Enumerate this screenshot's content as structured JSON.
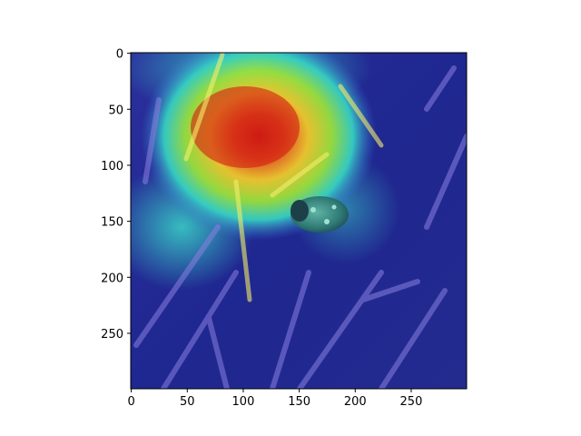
{
  "figure": {
    "image_description_icon": "heatmap-overlay-photo",
    "x_ticks": [
      "0",
      "50",
      "100",
      "150",
      "200",
      "250"
    ],
    "y_ticks": [
      "0",
      "50",
      "100",
      "150",
      "200",
      "250"
    ],
    "x_tick_values": [
      0,
      50,
      100,
      150,
      200,
      250
    ],
    "y_tick_values": [
      0,
      50,
      100,
      150,
      200,
      250
    ],
    "x_range": [
      0,
      299
    ],
    "y_range": [
      0,
      299
    ]
  }
}
